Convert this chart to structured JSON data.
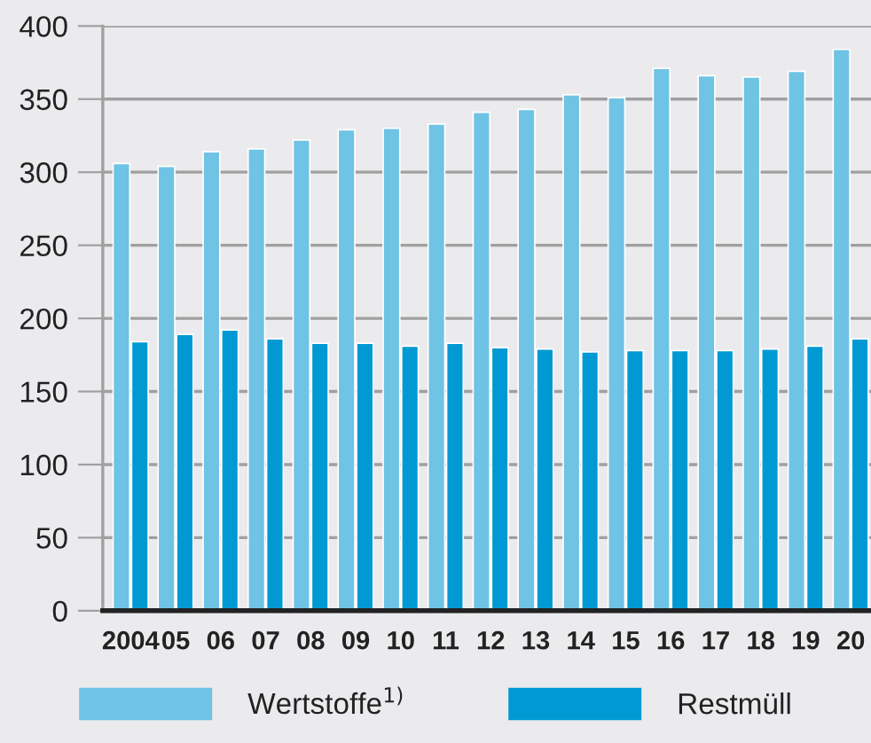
{
  "chart_data": {
    "type": "bar",
    "categories": [
      "2004",
      "05",
      "06",
      "07",
      "08",
      "09",
      "10",
      "11",
      "12",
      "13",
      "14",
      "15",
      "16",
      "17",
      "18",
      "19",
      "20"
    ],
    "series": [
      {
        "name": "Wertstoffe$^{1)}$",
        "color": "#6fc3e4",
        "values": [
          306,
          304,
          314,
          316,
          322,
          329,
          330,
          333,
          341,
          343,
          353,
          351,
          371,
          366,
          365,
          369,
          384
        ]
      },
      {
        "name": "Restmüll",
        "color": "#0099d4",
        "values": [
          184,
          189,
          192,
          186,
          183,
          183,
          181,
          183,
          180,
          179,
          177,
          178,
          178,
          178,
          179,
          181,
          186
        ]
      }
    ],
    "ylim": [
      0,
      400
    ],
    "yticks": [
      0,
      50,
      100,
      150,
      200,
      250,
      300,
      350,
      400
    ],
    "grid": "y",
    "legend": "bottom"
  }
}
